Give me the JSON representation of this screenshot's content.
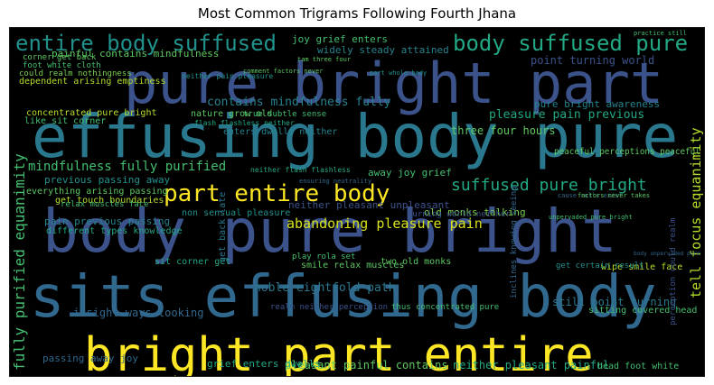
{
  "chart_data": {
    "type": "wordcloud",
    "title": "Most Common Trigrams Following Fourth Jhana",
    "background": "#000000",
    "palette": "viridis",
    "words": [
      {
        "text": "effusing body pure",
        "weight": 100,
        "color": "#2a788e"
      },
      {
        "text": "body pure bright",
        "weight": 98,
        "color": "#3b528b"
      },
      {
        "text": "sits effusing body",
        "weight": 96,
        "color": "#31688e"
      },
      {
        "text": "pure bright part",
        "weight": 92,
        "color": "#3b528b"
      },
      {
        "text": "bright part entire",
        "weight": 88,
        "color": "#fde725"
      },
      {
        "text": "entire body suffused",
        "weight": 46,
        "color": "#21918c"
      },
      {
        "text": "body suffused pure",
        "weight": 44,
        "color": "#22a884"
      },
      {
        "text": "part entire body",
        "weight": 40,
        "color": "#fde725"
      },
      {
        "text": "suffused pure bright",
        "weight": 30,
        "color": "#22a884"
      },
      {
        "text": "mindfulness fully purified",
        "weight": 26,
        "color": "#44bf70"
      },
      {
        "text": "fully purified equanimity",
        "weight": 26,
        "color": "#44bf70"
      },
      {
        "text": "tell focus equanimity",
        "weight": 24,
        "color": "#b5de2b"
      },
      {
        "text": "abandoning pleasure pain",
        "weight": 24,
        "color": "#d8e219"
      },
      {
        "text": "noble eightfold path",
        "weight": 20,
        "color": "#2a788e"
      },
      {
        "text": "contains mindfulness fully",
        "weight": 19,
        "color": "#26828e"
      },
      {
        "text": "pleasure pain previous",
        "weight": 18,
        "color": "#22a884"
      },
      {
        "text": "pleasant painful contains",
        "weight": 17,
        "color": "#5ec962"
      },
      {
        "text": "insight ways looking",
        "weight": 17,
        "color": "#31688e"
      },
      {
        "text": "still point turning",
        "weight": 16,
        "color": "#2a788e"
      },
      {
        "text": "point turning world",
        "weight": 16,
        "color": "#3b528b"
      },
      {
        "text": "three four hours",
        "weight": 16,
        "color": "#5ec962"
      },
      {
        "text": "neither pleasant painful",
        "weight": 15,
        "color": "#22a884"
      },
      {
        "text": "neither pleasant unpleasant",
        "weight": 15,
        "color": "#3b528b"
      },
      {
        "text": "pain previous passing",
        "weight": 15,
        "color": "#26828e"
      },
      {
        "text": "previous passing away",
        "weight": 15,
        "color": "#21918c"
      },
      {
        "text": "pure bright awareness",
        "weight": 14,
        "color": "#26828e"
      },
      {
        "text": "joy grief enters",
        "weight": 14,
        "color": "#44bf70"
      },
      {
        "text": "away joy grief",
        "weight": 14,
        "color": "#44bf70"
      },
      {
        "text": "passing away joy",
        "weight": 14,
        "color": "#31688e"
      },
      {
        "text": "grief enters dwells",
        "weight": 13,
        "color": "#22a884"
      },
      {
        "text": "painful contains mindfulness",
        "weight": 13,
        "color": "#5ec962"
      },
      {
        "text": "widely steady attained",
        "weight": 13,
        "color": "#26828e"
      },
      {
        "text": "everything arising passing",
        "weight": 12,
        "color": "#5ec962"
      },
      {
        "text": "smile relax muscles",
        "weight": 12,
        "color": "#5ec962"
      },
      {
        "text": "old monks talking",
        "weight": 12,
        "color": "#7ad151"
      },
      {
        "text": "two old monks",
        "weight": 12,
        "color": "#5ec962"
      },
      {
        "text": "non sensual pleasure",
        "weight": 12,
        "color": "#21918c"
      },
      {
        "text": "enters dwells neither",
        "weight": 12,
        "color": "#26828e"
      },
      {
        "text": "peaceful perceptions peaceful",
        "weight": 11,
        "color": "#5ec962"
      },
      {
        "text": "wipe smile face",
        "weight": 11,
        "color": "#b5de2b"
      },
      {
        "text": "get certain result",
        "weight": 11,
        "color": "#21918c"
      },
      {
        "text": "sit corner get",
        "weight": 11,
        "color": "#22a884"
      },
      {
        "text": "get back late",
        "weight": 11,
        "color": "#2a788e"
      },
      {
        "text": "get touch boundaries",
        "weight": 11,
        "color": "#b5de2b"
      },
      {
        "text": "different types knowledge",
        "weight": 11,
        "color": "#22a884"
      },
      {
        "text": "concentrated pure bright",
        "weight": 11,
        "color": "#b5de2b"
      },
      {
        "text": "dependent arising emptiness",
        "weight": 11,
        "color": "#b5de2b"
      },
      {
        "text": "could realm nothingness",
        "weight": 11,
        "color": "#7ad151"
      },
      {
        "text": "like sit corner",
        "weight": 11,
        "color": "#44bf70"
      },
      {
        "text": "nature grow old",
        "weight": 11,
        "color": "#5ec962"
      },
      {
        "text": "true subtle sense",
        "weight": 11,
        "color": "#44bf70"
      },
      {
        "text": "turning world neither",
        "weight": 10,
        "color": "#3b528b"
      },
      {
        "text": "play rola set",
        "weight": 10,
        "color": "#44bf70"
      },
      {
        "text": "relax muscles face",
        "weight": 10,
        "color": "#44bf70"
      },
      {
        "text": "realm neither perception",
        "weight": 10,
        "color": "#3b528b"
      },
      {
        "text": "thus concentrated pure",
        "weight": 10,
        "color": "#44bf70"
      },
      {
        "text": "sitting covered head",
        "weight": 10,
        "color": "#44bf70"
      },
      {
        "text": "head foot white",
        "weight": 10,
        "color": "#44bf70"
      },
      {
        "text": "perception could realm",
        "weight": 10,
        "color": "#3b528b"
      },
      {
        "text": "inclines knowing seeing",
        "weight": 10,
        "color": "#31688e"
      },
      {
        "text": "neither flash flashless",
        "weight": 9,
        "color": "#22a884"
      },
      {
        "text": "flash flashless neither",
        "weight": 9,
        "color": "#22a884"
      },
      {
        "text": "foot white cloth",
        "weight": 9,
        "color": "#44bf70"
      },
      {
        "text": "corner get back",
        "weight": 9,
        "color": "#5ec962"
      },
      {
        "text": "practice still",
        "weight": 8,
        "color": "#44bf70"
      },
      {
        "text": "neither pain pleasure",
        "weight": 8,
        "color": "#21918c"
      },
      {
        "text": "comment factors never",
        "weight": 8,
        "color": "#5ec962"
      },
      {
        "text": "part whole body",
        "weight": 8,
        "color": "#21918c"
      },
      {
        "text": "tam three four",
        "weight": 8,
        "color": "#5ec962"
      },
      {
        "text": "cause rolls exist",
        "weight": 8,
        "color": "#31688e"
      },
      {
        "text": "factors never takes",
        "weight": 8,
        "color": "#5ec962"
      },
      {
        "text": "body unpervaded pure",
        "weight": 8,
        "color": "#31688e"
      },
      {
        "text": "unpervaded pure bright",
        "weight": 8,
        "color": "#44bf70"
      },
      {
        "text": "ensuring neutrality",
        "weight": 8,
        "color": "#31688e"
      }
    ]
  }
}
